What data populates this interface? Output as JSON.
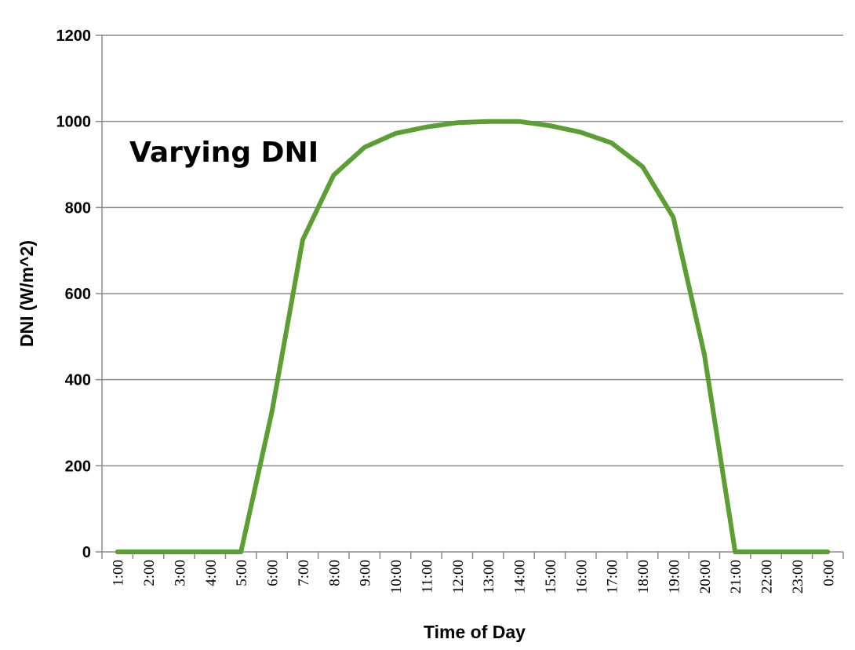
{
  "chart_data": {
    "type": "line",
    "title": "",
    "annotation": "Varying DNI",
    "xlabel": "Time of Day",
    "ylabel": "DNI (W/m^2)",
    "ylim": [
      0,
      1200
    ],
    "yticks": [
      0,
      200,
      400,
      600,
      800,
      1000,
      1200
    ],
    "grid": true,
    "categories": [
      "1:00",
      "2:00",
      "3:00",
      "4:00",
      "5:00",
      "6:00",
      "7:00",
      "8:00",
      "9:00",
      "10:00",
      "11:00",
      "12:00",
      "13:00",
      "14:00",
      "15:00",
      "16:00",
      "17:00",
      "18:00",
      "19:00",
      "20:00",
      "21:00",
      "22:00",
      "23:00",
      "0:00"
    ],
    "series": [
      {
        "color": "#5b9f32",
        "values": [
          0,
          0,
          0,
          0,
          0,
          325,
          725,
          875,
          940,
          972,
          987,
          997,
          1000,
          1000,
          990,
          975,
          950,
          895,
          777,
          460,
          0,
          0,
          0,
          0
        ]
      }
    ]
  }
}
